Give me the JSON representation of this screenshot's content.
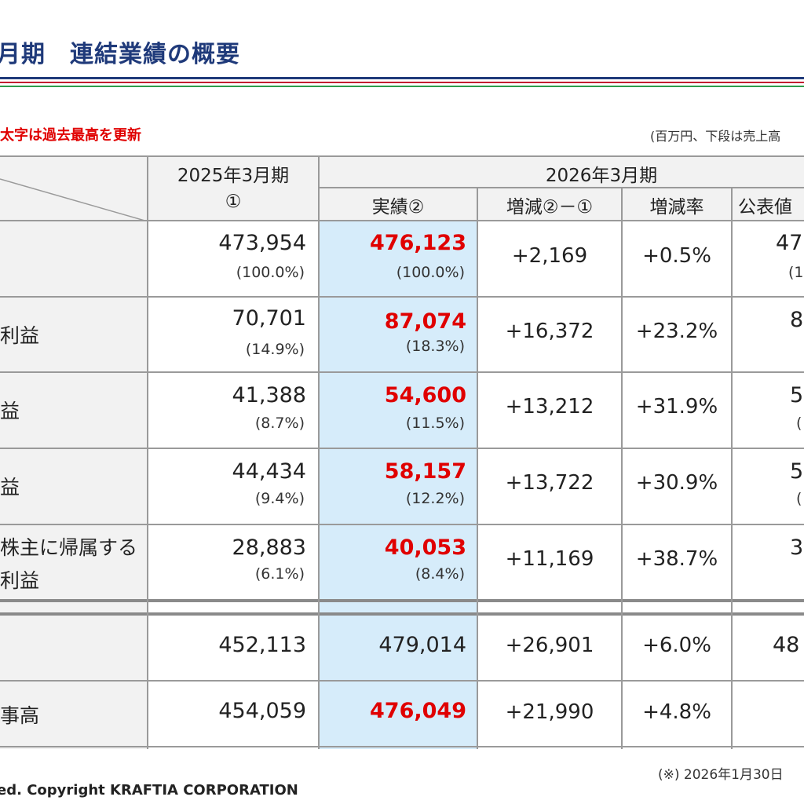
{
  "header": {
    "title": "月期　連結業績の概要",
    "note_red": "太字は過去最高を更新",
    "note_unit": "(百万円、下段は売上高"
  },
  "table": {
    "col_prev_title": "2025年3月期",
    "col_prev_sub": "①",
    "col_curr_title": "2026年3月期",
    "col_actual": "実績②",
    "col_diff": "増減②－①",
    "col_rate": "増減率",
    "col_forecast": "公表値",
    "rows": [
      {
        "label_lines": [
          "",
          ""
        ],
        "prev": "473,954",
        "prev_pct": "(100.0%)",
        "actual": "476,123",
        "actual_pct": "(100.0%)",
        "diff": "+2,169",
        "rate": "+0.5%",
        "forecast": "47",
        "forecast_pct": "(1"
      },
      {
        "label_lines": [
          "利益",
          ""
        ],
        "prev": "70,701",
        "prev_pct": "(14.9%)",
        "actual": "87,074",
        "actual_pct": "(18.3%)",
        "diff": "+16,372",
        "rate": "+23.2%",
        "forecast": "8",
        "forecast_pct": ""
      },
      {
        "label_lines": [
          "益",
          ""
        ],
        "prev": "41,388",
        "prev_pct": "(8.7%)",
        "actual": "54,600",
        "actual_pct": "(11.5%)",
        "diff": "+13,212",
        "rate": "+31.9%",
        "forecast": "5",
        "forecast_pct": "("
      },
      {
        "label_lines": [
          "益",
          ""
        ],
        "prev": "44,434",
        "prev_pct": "(9.4%)",
        "actual": "58,157",
        "actual_pct": "(12.2%)",
        "diff": "+13,722",
        "rate": "+30.9%",
        "forecast": "5",
        "forecast_pct": "("
      },
      {
        "label_lines": [
          "株主に帰属する",
          "利益"
        ],
        "prev": "28,883",
        "prev_pct": "(6.1%)",
        "actual": "40,053",
        "actual_pct": "(8.4%)",
        "diff": "+11,169",
        "rate": "+38.7%",
        "forecast": "3",
        "forecast_pct": ""
      }
    ],
    "rows_lower": [
      {
        "label": "",
        "prev": "452,113",
        "actual": "479,014",
        "diff": "+26,901",
        "rate": "+6.0%",
        "forecast": "48"
      },
      {
        "label": "事高",
        "prev": "454,059",
        "actual": "476,049",
        "diff": "+21,990",
        "rate": "+4.8%",
        "forecast": ""
      }
    ]
  },
  "footer": {
    "copyright": "ed. Copyright KRAFTIA CORPORATION",
    "note": "(※) 2026年1月30日"
  },
  "colors": {
    "record_red": "#e00000",
    "highlight": "#d6ecfa",
    "title_navy": "#1f3a7a"
  }
}
